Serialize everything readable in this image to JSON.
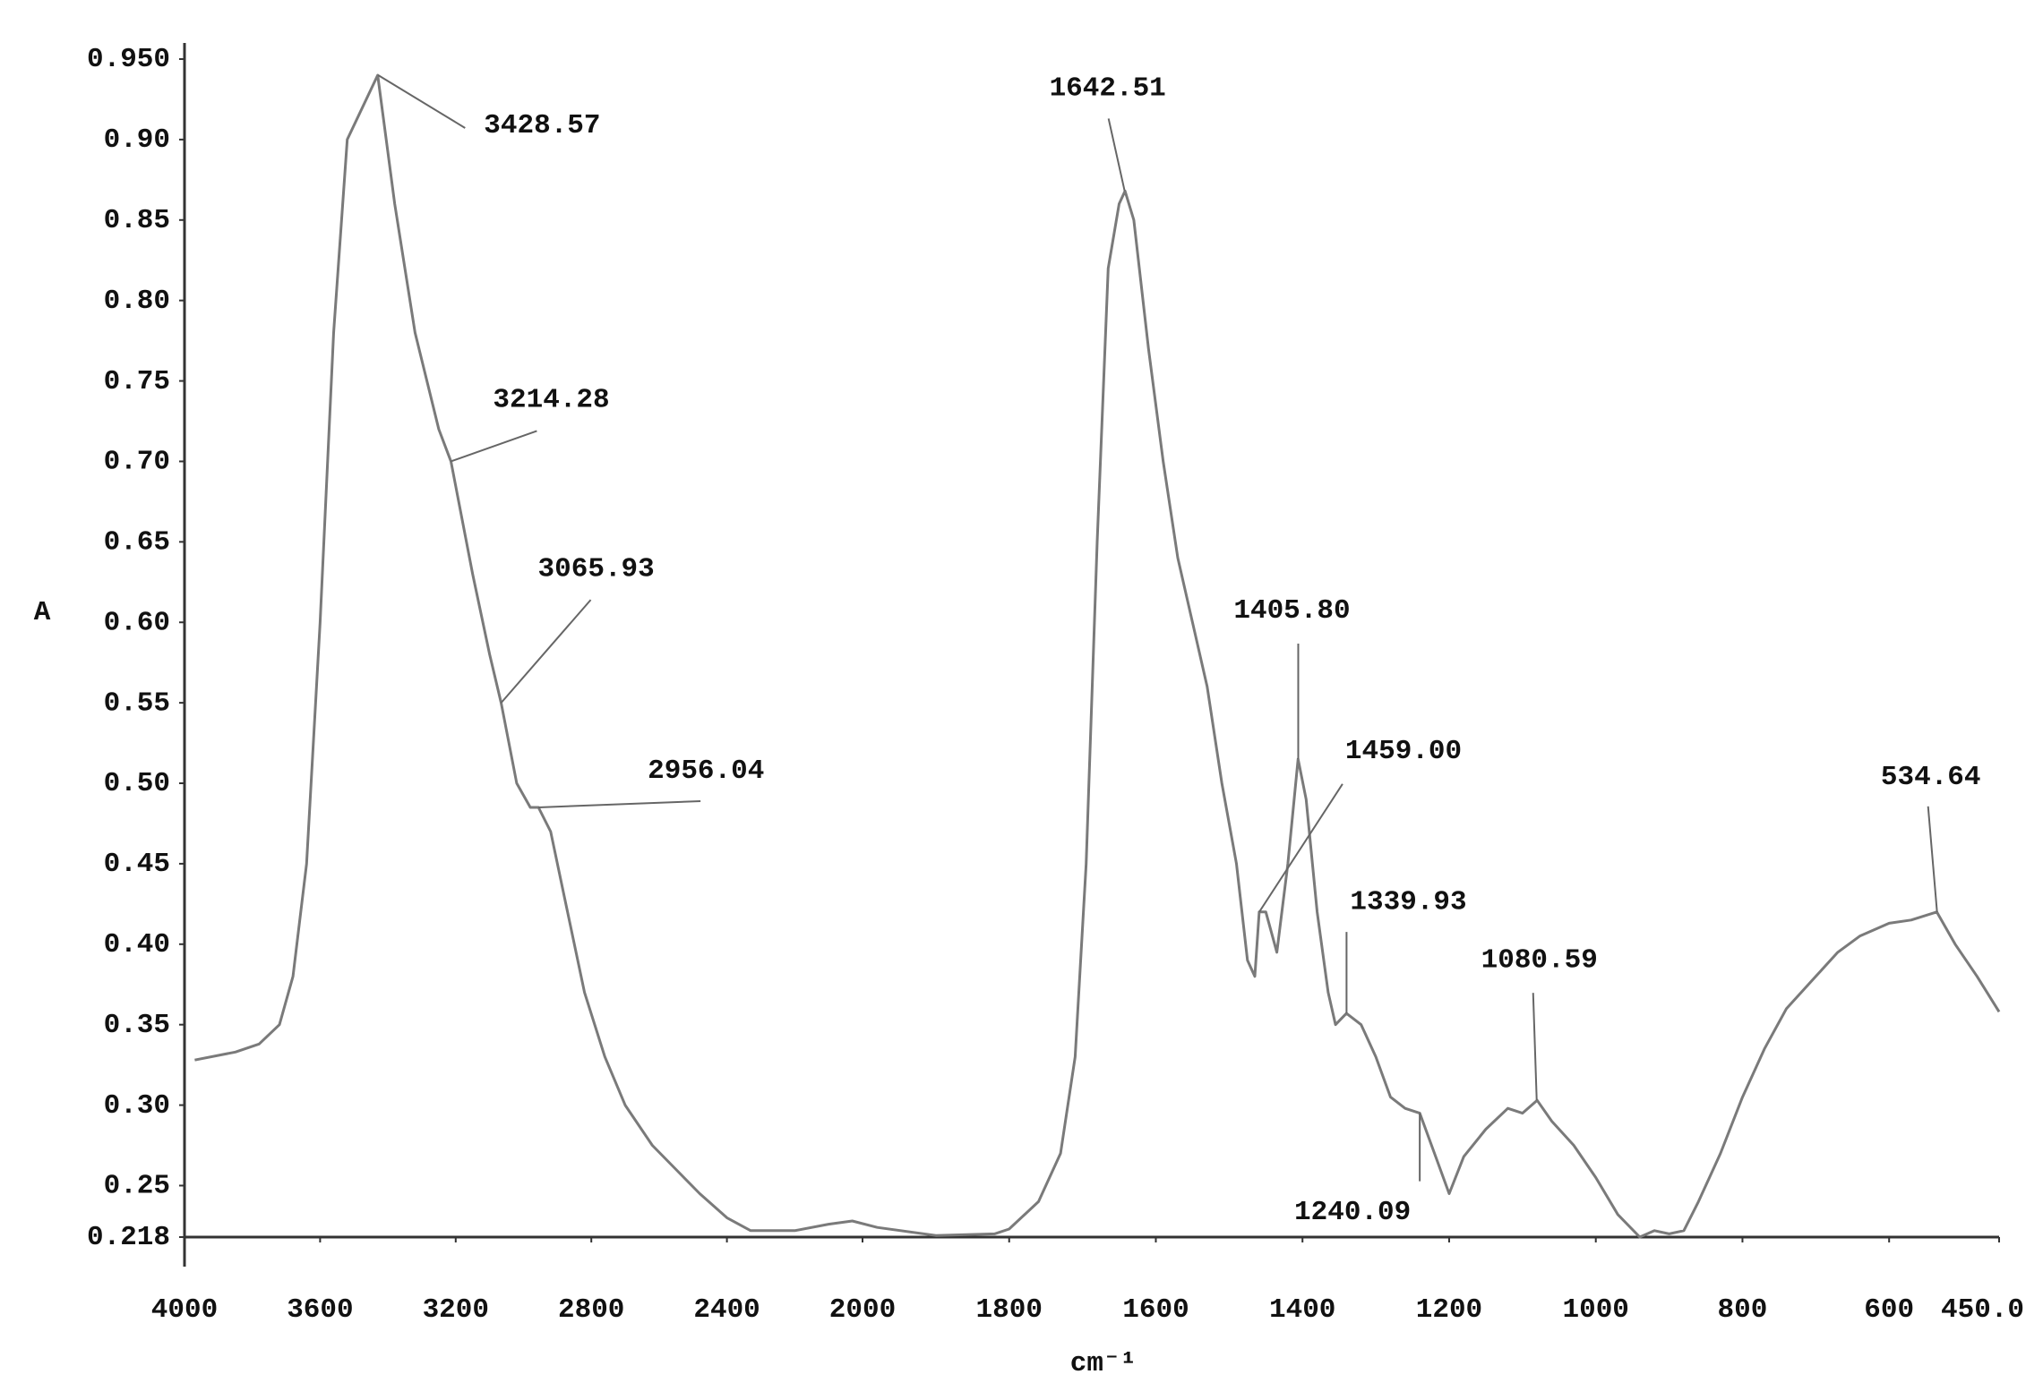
{
  "chart_data": {
    "type": "line",
    "xlabel": "cm⁻¹",
    "ylabel": "A",
    "xlim": [
      4000,
      450
    ],
    "xbreak": 2000,
    "xticks": [
      4000,
      3600,
      3200,
      2800,
      2400,
      2000,
      1800,
      1600,
      1400,
      1200,
      1000,
      800,
      600,
      {
        "value": 450,
        "label": "450.0"
      }
    ],
    "ylim": [
      0.218,
      0.95
    ],
    "yticks": [
      {
        "value": 0.95,
        "label": "0.950"
      },
      {
        "value": 0.9,
        "label": "0.90"
      },
      0.85,
      {
        "value": 0.8,
        "label": "0.80"
      },
      0.75,
      {
        "value": 0.7,
        "label": "0.70"
      },
      0.65,
      {
        "value": 0.6,
        "label": "0.60"
      },
      0.55,
      {
        "value": 0.5,
        "label": "0.50"
      },
      0.45,
      {
        "value": 0.4,
        "label": "0.40"
      },
      0.35,
      {
        "value": 0.3,
        "label": "0.30"
      },
      0.25,
      0.218
    ],
    "grid": false,
    "series": [
      {
        "color": "#7a7a7a",
        "x": [
          3970,
          3850,
          3780,
          3720,
          3680,
          3640,
          3600,
          3560,
          3520,
          3430,
          3380,
          3320,
          3250,
          3214,
          3150,
          3100,
          3066,
          3020,
          2980,
          2956,
          2920,
          2880,
          2820,
          2760,
          2700,
          2620,
          2550,
          2480,
          2400,
          2330,
          2200,
          2100,
          2030,
          1980,
          1900,
          1820,
          1800,
          1760,
          1730,
          1710,
          1695,
          1680,
          1665,
          1650,
          1642,
          1630,
          1610,
          1590,
          1570,
          1550,
          1530,
          1510,
          1490,
          1475,
          1465,
          1459,
          1450,
          1435,
          1420,
          1406,
          1395,
          1380,
          1365,
          1355,
          1340,
          1320,
          1300,
          1280,
          1260,
          1240,
          1220,
          1200,
          1180,
          1150,
          1120,
          1100,
          1080,
          1060,
          1030,
          1000,
          970,
          940,
          920,
          900,
          880,
          860,
          830,
          800,
          770,
          740,
          700,
          670,
          640,
          600,
          570,
          535,
          510,
          480,
          450
        ],
        "values": [
          0.328,
          0.333,
          0.338,
          0.35,
          0.38,
          0.45,
          0.6,
          0.78,
          0.9,
          0.94,
          0.86,
          0.78,
          0.72,
          0.7,
          0.63,
          0.58,
          0.55,
          0.5,
          0.485,
          0.485,
          0.47,
          0.43,
          0.37,
          0.33,
          0.3,
          0.275,
          0.26,
          0.245,
          0.23,
          0.222,
          0.222,
          0.226,
          0.228,
          0.224,
          0.219,
          0.22,
          0.223,
          0.24,
          0.27,
          0.33,
          0.45,
          0.65,
          0.82,
          0.86,
          0.868,
          0.85,
          0.77,
          0.7,
          0.64,
          0.6,
          0.56,
          0.5,
          0.45,
          0.39,
          0.38,
          0.42,
          0.42,
          0.395,
          0.45,
          0.515,
          0.49,
          0.42,
          0.37,
          0.35,
          0.357,
          0.35,
          0.33,
          0.305,
          0.298,
          0.295,
          0.27,
          0.245,
          0.268,
          0.285,
          0.298,
          0.295,
          0.303,
          0.29,
          0.275,
          0.255,
          0.232,
          0.218,
          0.222,
          0.22,
          0.222,
          0.24,
          0.27,
          0.305,
          0.335,
          0.36,
          0.38,
          0.395,
          0.405,
          0.413,
          0.415,
          0.42,
          0.4,
          0.38,
          0.358
        ]
      }
    ],
    "annotations": [
      {
        "label": "3428.57",
        "x": 3428.57,
        "y": 0.94
      },
      {
        "label": "3214.28",
        "x": 3214.28,
        "y": 0.7
      },
      {
        "label": "3065.93",
        "x": 3065.93,
        "y": 0.55
      },
      {
        "label": "2956.04",
        "x": 2956.04,
        "y": 0.485
      },
      {
        "label": "1642.51",
        "x": 1642.51,
        "y": 0.868
      },
      {
        "label": "1405.80",
        "x": 1405.8,
        "y": 0.515
      },
      {
        "label": "1459.00",
        "x": 1459,
        "y": 0.42
      },
      {
        "label": "1339.93",
        "x": 1339.93,
        "y": 0.357
      },
      {
        "label": "1240.09",
        "x": 1240.09,
        "y": 0.295
      },
      {
        "label": "1080.59",
        "x": 1080.59,
        "y": 0.303
      },
      {
        "label": "534.64",
        "x": 534.64,
        "y": 0.42
      }
    ]
  }
}
